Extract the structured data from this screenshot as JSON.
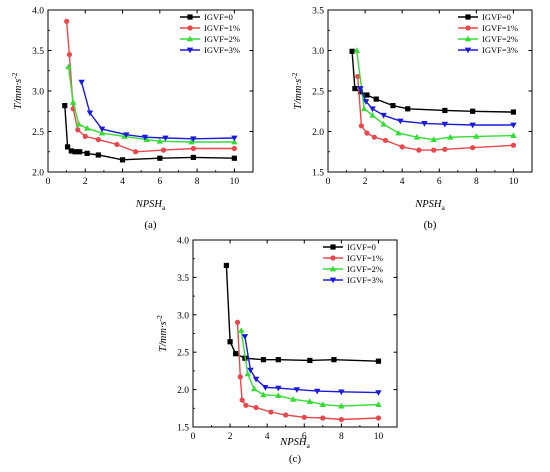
{
  "series_colors": [
    "#000000",
    "#e8474b",
    "#33dd33",
    "#1a1adb"
  ],
  "series_markers": [
    "square",
    "circle",
    "triangle-up",
    "triangle-down"
  ],
  "chart_data": [
    {
      "type": "line",
      "panel_label": "(a)",
      "xlabel": "NPSH",
      "xlabel_sub": "a",
      "ylabel": "T/mm·s",
      "ylabel_sup": "-2",
      "xlim": [
        0,
        11
      ],
      "ylim": [
        2.0,
        4.0
      ],
      "xticks": [
        "0",
        "2",
        "4",
        "6",
        "8",
        "10"
      ],
      "yticks": [
        "2.0",
        "2.5",
        "3.0",
        "3.5",
        "4.0"
      ],
      "legend_position": "top-right",
      "series": [
        {
          "name": "IGVF=0",
          "x": [
            0.9,
            1.05,
            1.25,
            1.45,
            1.7,
            2.1,
            2.7,
            4.0,
            6.0,
            7.8,
            10.0
          ],
          "y": [
            2.82,
            2.31,
            2.26,
            2.25,
            2.25,
            2.23,
            2.21,
            2.15,
            2.17,
            2.18,
            2.17
          ]
        },
        {
          "name": "IGVF=1%",
          "x": [
            1.0,
            1.15,
            1.35,
            1.6,
            2.0,
            2.7,
            3.7,
            4.7,
            6.2,
            7.8,
            10.0
          ],
          "y": [
            3.86,
            3.45,
            2.78,
            2.52,
            2.44,
            2.4,
            2.34,
            2.25,
            2.27,
            2.29,
            2.29
          ]
        },
        {
          "name": "IGVF=2%",
          "x": [
            1.1,
            1.35,
            1.65,
            2.1,
            2.9,
            4.1,
            5.3,
            6.0,
            7.7,
            10.0
          ],
          "y": [
            3.3,
            2.86,
            2.59,
            2.54,
            2.48,
            2.44,
            2.4,
            2.38,
            2.37,
            2.37
          ]
        },
        {
          "name": "IGVF=3%",
          "x": [
            1.8,
            2.25,
            2.9,
            4.2,
            5.2,
            6.3,
            7.8,
            10.0
          ],
          "y": [
            3.11,
            2.73,
            2.53,
            2.46,
            2.43,
            2.42,
            2.41,
            2.42
          ]
        }
      ]
    },
    {
      "type": "line",
      "panel_label": "(b)",
      "xlabel": "NPSH",
      "xlabel_sub": "a",
      "ylabel": "T/mm·s",
      "ylabel_sup": "-2",
      "xlim": [
        0,
        11
      ],
      "ylim": [
        1.5,
        3.5
      ],
      "xticks": [
        "0",
        "2",
        "4",
        "6",
        "8",
        "10"
      ],
      "yticks": [
        "1.5",
        "2.0",
        "2.5",
        "3.0",
        "3.5"
      ],
      "legend_position": "top-right",
      "series": [
        {
          "name": "IGVF=0",
          "x": [
            1.3,
            1.45,
            1.75,
            2.1,
            2.6,
            3.5,
            4.3,
            6.3,
            7.8,
            10.0
          ],
          "y": [
            2.99,
            2.53,
            2.49,
            2.45,
            2.4,
            2.32,
            2.28,
            2.26,
            2.25,
            2.24
          ]
        },
        {
          "name": "IGVF=1%",
          "x": [
            1.6,
            1.8,
            2.1,
            2.5,
            3.1,
            4.0,
            4.9,
            5.7,
            6.3,
            7.8,
            10.0
          ],
          "y": [
            2.68,
            2.07,
            1.98,
            1.93,
            1.89,
            1.81,
            1.77,
            1.77,
            1.78,
            1.8,
            1.83
          ]
        },
        {
          "name": "IGVF=2%",
          "x": [
            1.55,
            1.95,
            2.4,
            3.0,
            3.8,
            4.8,
            5.7,
            6.6,
            8.0,
            10.0
          ],
          "y": [
            3.0,
            2.28,
            2.2,
            2.09,
            1.98,
            1.93,
            1.9,
            1.93,
            1.94,
            1.95
          ]
        },
        {
          "name": "IGVF=3%",
          "x": [
            1.75,
            2.05,
            2.4,
            3.0,
            3.9,
            5.2,
            6.3,
            7.8,
            10.0
          ],
          "y": [
            2.53,
            2.37,
            2.28,
            2.2,
            2.13,
            2.1,
            2.09,
            2.08,
            2.08
          ]
        }
      ]
    },
    {
      "type": "line",
      "panel_label": "(c)",
      "xlabel": "NPSH",
      "xlabel_sub": "a",
      "ylabel": "T/mm·s",
      "ylabel_sup": "-2",
      "xlim": [
        0,
        11
      ],
      "ylim": [
        1.5,
        4.0
      ],
      "xticks": [
        "0",
        "2",
        "4",
        "6",
        "8",
        "10"
      ],
      "yticks": [
        "1.5",
        "2.0",
        "2.5",
        "3.0",
        "3.5",
        "4.0"
      ],
      "legend_position": "top-right",
      "series": [
        {
          "name": "IGVF=0",
          "x": [
            1.8,
            2.0,
            2.3,
            2.8,
            3.8,
            4.6,
            6.3,
            7.6,
            10.0
          ],
          "y": [
            3.66,
            2.64,
            2.48,
            2.42,
            2.4,
            2.4,
            2.39,
            2.4,
            2.38
          ]
        },
        {
          "name": "IGVF=1%",
          "x": [
            2.4,
            2.55,
            2.65,
            2.85,
            3.4,
            4.2,
            5.0,
            6.0,
            7.0,
            8.0,
            10.0
          ],
          "y": [
            2.9,
            2.17,
            1.86,
            1.79,
            1.76,
            1.7,
            1.66,
            1.63,
            1.62,
            1.6,
            1.62
          ]
        },
        {
          "name": "IGVF=2%",
          "x": [
            2.6,
            2.95,
            3.3,
            3.8,
            4.6,
            5.4,
            6.3,
            7.0,
            8.0,
            10.0
          ],
          "y": [
            2.79,
            2.21,
            2.01,
            1.93,
            1.92,
            1.87,
            1.84,
            1.8,
            1.78,
            1.8
          ]
        },
        {
          "name": "IGVF=3%",
          "x": [
            2.8,
            3.1,
            3.4,
            3.9,
            4.6,
            5.6,
            6.7,
            8.0,
            10.0
          ],
          "y": [
            2.71,
            2.26,
            2.14,
            2.03,
            2.02,
            2.0,
            1.98,
            1.97,
            1.96
          ]
        }
      ]
    }
  ]
}
